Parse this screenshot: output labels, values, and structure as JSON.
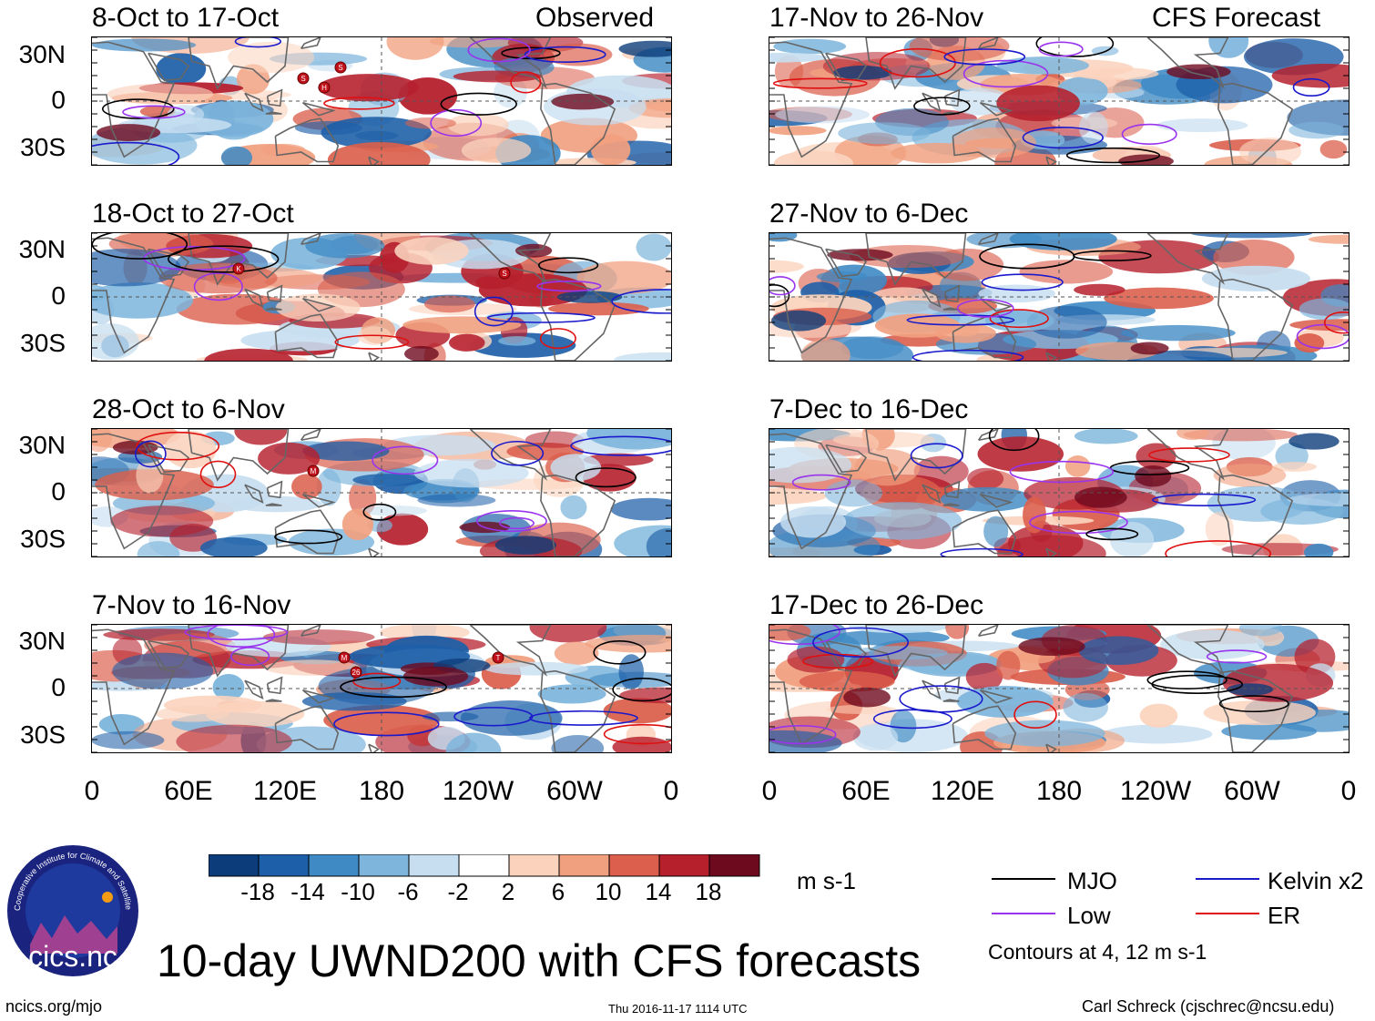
{
  "chart_data": {
    "type": "heatmap",
    "title": "10-day UWND200 with CFS forecasts",
    "units": "m s-1",
    "variable": "UWND200",
    "observed_label": "Observed",
    "forecast_label": "CFS Forecast",
    "lat_ticks": [
      "30N",
      "0",
      "30S"
    ],
    "lon_ticks": [
      "0",
      "60E",
      "120E",
      "180",
      "120W",
      "60W",
      "0"
    ],
    "colorbar_levels": [
      "-18",
      "-14",
      "-10",
      "-6",
      "-2",
      "2",
      "6",
      "10",
      "14",
      "18"
    ],
    "colorbar_colors": [
      "#0c3d7a",
      "#1d5fa8",
      "#3f8ac4",
      "#7db5dc",
      "#c6def0",
      "#ffffff",
      "#fbd3bd",
      "#f1a07f",
      "#db5f4c",
      "#b6202d",
      "#6e0a1e"
    ],
    "panels_observed": [
      {
        "label": "8-Oct to 17-Oct"
      },
      {
        "label": "18-Oct to 27-Oct"
      },
      {
        "label": "28-Oct to 6-Nov"
      },
      {
        "label": "7-Nov to 16-Nov"
      }
    ],
    "panels_forecast": [
      {
        "label": "17-Nov to 26-Nov"
      },
      {
        "label": "27-Nov to 6-Dec"
      },
      {
        "label": "7-Dec to 16-Dec"
      },
      {
        "label": "17-Dec to 26-Dec"
      }
    ],
    "legend": [
      {
        "name": "MJO",
        "color": "#000000"
      },
      {
        "name": "Kelvin x2",
        "color": "#1a1acc"
      },
      {
        "name": "Low",
        "color": "#9933ee"
      },
      {
        "name": "ER",
        "color": "#e01010"
      }
    ],
    "contour_note": "Contours at 4, 12 m s-1"
  },
  "footer": {
    "logo_text": "cics.nc",
    "logo_ring_text": "Cooperative Institute for Climate and Satellites",
    "url": "ncics.org/mjo",
    "timestamp": "Thu 2016-11-17 1114 UTC",
    "author": "Carl Schreck (cjschrec@ncsu.edu)"
  },
  "storm_markers": {
    "p0": [
      "S",
      "S",
      "H"
    ],
    "p1": [
      "K",
      "S"
    ],
    "p2": [
      "M"
    ],
    "p3": [
      "M",
      "26",
      "T"
    ]
  },
  "colors": {
    "coast": "#666666",
    "grid": "#555555"
  }
}
